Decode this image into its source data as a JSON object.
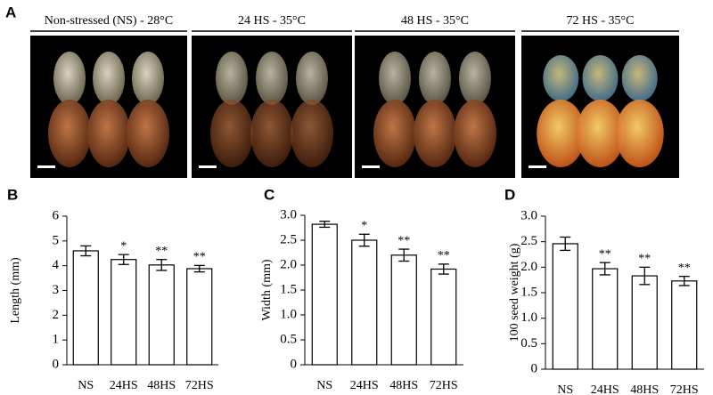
{
  "panel_a": {
    "label": "A",
    "headings": [
      "Non-stressed (NS) - 28°C",
      "24 HS - 35°C",
      "48 HS - 35°C",
      "72 HS - 35°C"
    ]
  },
  "chart_data": [
    {
      "type": "bar",
      "label": "B",
      "ylabel": "Length (mm)",
      "categories": [
        "NS",
        "24HS",
        "48HS",
        "72HS"
      ],
      "values": [
        4.6,
        4.25,
        4.03,
        3.88
      ],
      "errors": [
        0.2,
        0.2,
        0.22,
        0.13
      ],
      "annotations": [
        null,
        "*",
        "**",
        "**"
      ],
      "color": "#ffffff",
      "ylim": [
        0,
        6
      ],
      "yticks": [
        0,
        1,
        2,
        3,
        4,
        5,
        6
      ]
    },
    {
      "type": "bar",
      "label": "C",
      "ylabel": "Width (mm)",
      "categories": [
        "NS",
        "24HS",
        "48HS",
        "72HS"
      ],
      "values": [
        2.82,
        2.5,
        2.2,
        1.92
      ],
      "errors": [
        0.06,
        0.12,
        0.12,
        0.1
      ],
      "annotations": [
        null,
        "*",
        "**",
        "**"
      ],
      "color": "#ffffff",
      "ylim": [
        0,
        3
      ],
      "yticks": [
        0,
        0.5,
        {
          "value": 1,
          "label": "1.0"
        },
        1.5,
        {
          "value": 2,
          "label": "2.0"
        },
        2.5,
        {
          "value": 3,
          "label": "3.0"
        }
      ]
    },
    {
      "type": "bar",
      "label": "D",
      "ylabel": "100 seed weight (g)",
      "categories": [
        "NS",
        "24HS",
        "48HS",
        "72HS"
      ],
      "values": [
        2.46,
        1.97,
        1.83,
        1.73
      ],
      "errors": [
        0.13,
        0.12,
        0.17,
        0.09
      ],
      "annotations": [
        null,
        "**",
        "**",
        "**"
      ],
      "color": "#ffffff",
      "ylim": [
        0,
        3
      ],
      "yticks": [
        0,
        0.5,
        {
          "value": 1,
          "label": "1.0"
        },
        1.5,
        {
          "value": 2,
          "label": "2.0"
        },
        2.5,
        {
          "value": 3,
          "label": "3.0"
        }
      ]
    }
  ]
}
